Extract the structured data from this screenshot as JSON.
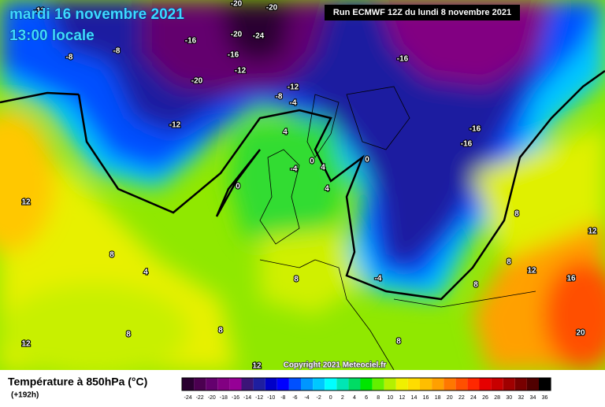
{
  "header": {
    "date": "mardi 16 novembre 2021",
    "time": "13:00 locale",
    "run": "Run ECMWF 12Z du lundi 8 novembre 2021"
  },
  "map": {
    "labels": [
      "-20",
      "-20",
      "-16",
      "-20",
      "-24",
      "-16",
      "-12",
      "-20",
      "-12",
      "-8",
      "-8",
      "-12",
      "-8",
      "-4",
      "-12",
      "-16",
      "-16",
      "-16",
      "4",
      "-4",
      "0",
      "4",
      "0",
      "4",
      "0",
      "12",
      "8",
      "4",
      "8",
      "-4",
      "8",
      "8",
      "12",
      "16",
      "12",
      "8",
      "8",
      "8",
      "12",
      "20",
      "8",
      "12"
    ]
  },
  "copyright": "Copyright 2021 Meteociel.fr",
  "footer": {
    "title": "Température à 850hPa (°C)",
    "lead": "(+192h)"
  },
  "legend": {
    "ticks": [
      -24,
      -22,
      -20,
      -18,
      -16,
      -14,
      -12,
      -10,
      -8,
      -6,
      -4,
      -2,
      0,
      2,
      4,
      6,
      8,
      10,
      12,
      14,
      16,
      18,
      20,
      22,
      24,
      26,
      28,
      30,
      32,
      34,
      36
    ],
    "colors": [
      "#2a0030",
      "#4b0050",
      "#64006e",
      "#820082",
      "#960096",
      "#3c1478",
      "#1e1ea0",
      "#0000c8",
      "#0000ff",
      "#0050ff",
      "#0096ff",
      "#00c8ff",
      "#00ffff",
      "#00e6b4",
      "#00dc64",
      "#00e600",
      "#64f000",
      "#b4f000",
      "#f0f000",
      "#ffdc00",
      "#ffbe00",
      "#ffa000",
      "#ff7800",
      "#ff5000",
      "#ff2800",
      "#e60000",
      "#c80000",
      "#a00000",
      "#780000",
      "#500000",
      "#000000"
    ]
  }
}
